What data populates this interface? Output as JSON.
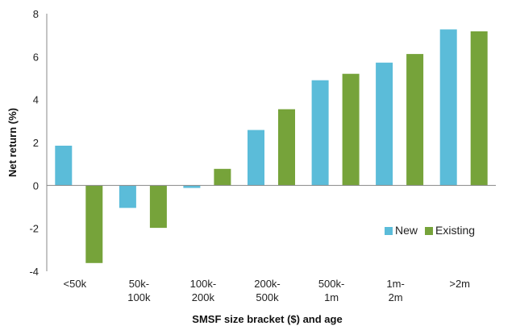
{
  "chart_data": {
    "type": "bar",
    "title": "",
    "xlabel": "SMSF size bracket ($) and age",
    "ylabel": "Net return (%)",
    "ylim": [
      -4,
      8
    ],
    "yticks": [
      "8",
      "6",
      "4",
      "2",
      "0",
      "-2",
      "-4"
    ],
    "categories": [
      [
        "<50k"
      ],
      [
        "50k-",
        "100k"
      ],
      [
        "100k-",
        "200k"
      ],
      [
        "200k-",
        "500k"
      ],
      [
        "500k-",
        "1m"
      ],
      [
        "1m-",
        "2m"
      ],
      [
        ">2m"
      ]
    ],
    "series": [
      {
        "name": "New",
        "color": "#5bbcd9",
        "values": [
          1.85,
          -1.05,
          -0.12,
          2.58,
          4.9,
          5.72,
          7.27
        ]
      },
      {
        "name": "Existing",
        "color": "#76a33a",
        "values": [
          -3.62,
          -1.98,
          0.77,
          3.55,
          5.2,
          6.12,
          7.18
        ]
      }
    ],
    "grid": false,
    "legend_position": "bottom-right"
  }
}
